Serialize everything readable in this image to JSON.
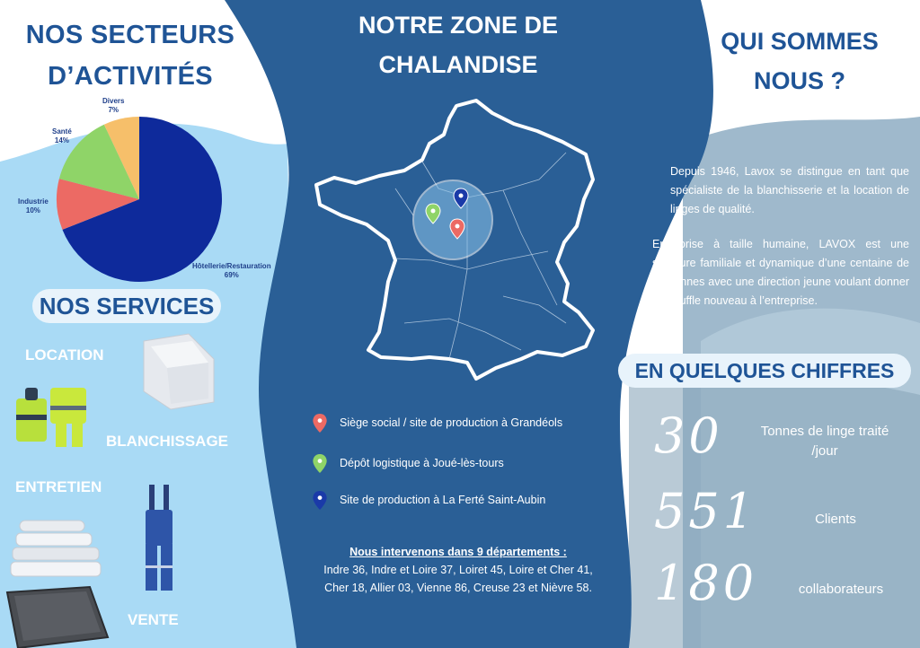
{
  "left": {
    "title_line1": "NOS SECTEURS",
    "title_line2": "D’ACTIVITÉS",
    "services_title": "NOS SERVICES",
    "services": {
      "location": "LOCATION",
      "blanchissage": "BLANCHISSAGE",
      "entretien": "ENTRETIEN",
      "vente": "VENTE"
    }
  },
  "chart_data": {
    "type": "pie",
    "title": "",
    "slices": [
      {
        "label": "Hôtellerie/Restauration",
        "pct_label": "69%",
        "value": 69,
        "color": "#0e2a9b"
      },
      {
        "label": "Industrie",
        "pct_label": "10%",
        "value": 10,
        "color": "#ec6a64"
      },
      {
        "label": "Santé",
        "pct_label": "14%",
        "value": 14,
        "color": "#8fd468"
      },
      {
        "label": "Divers",
        "pct_label": "7%",
        "value": 7,
        "color": "#f6bf6a"
      }
    ],
    "legend": "none"
  },
  "middle": {
    "title_line1": "NOTRE ZONE DE",
    "title_line2": "CHALANDISE",
    "legend": [
      {
        "text": "Siège social / site de production à Grandéols",
        "color": "#ec6a64"
      },
      {
        "text": "Dépôt logistique à Joué-lès-tours",
        "color": "#8fd468"
      },
      {
        "text": "Site de production à La Ferté Saint-Aubin",
        "color": "#1a3aa8"
      }
    ],
    "dept_heading": "Nous intervenons dans 9 départements :",
    "dept_text": "Indre 36, Indre et Loire 37, Loiret 45, Loire et Cher 41, Cher 18, Allier 03, Vienne 86, Creuse 23 et Nièvre 58."
  },
  "right": {
    "title_line1": "QUI SOMMES",
    "title_line2": "NOUS ?",
    "para1": "Depuis 1946, Lavox se distingue en tant que spécialiste de la blanchisserie et la location de linges de qualité.",
    "para2": "Entreprise à taille humaine, LAVOX est une structure familiale et dynamique d’une centaine de personnes avec une direction jeune voulant donner un souffle nouveau à l’entreprise.",
    "chiffres_title": "EN QUELQUES CHIFFRES",
    "stats": [
      {
        "number": "30",
        "label_line1": "Tonnes de linge traité",
        "label_line2": "/jour"
      },
      {
        "number": "551",
        "label_line1": "Clients",
        "label_line2": ""
      },
      {
        "number": "180",
        "label_line1": "collaborateurs",
        "label_line2": ""
      }
    ]
  },
  "colors": {
    "dark_blue_band": "#2a5f96",
    "title_blue": "#1f5496",
    "light_blue": "#a9daf5",
    "right_panel": "#9fb9cc"
  }
}
